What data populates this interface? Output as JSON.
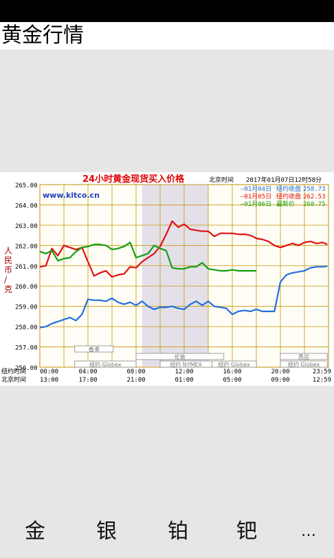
{
  "page": {
    "title": "黄金行情"
  },
  "tabs": [
    {
      "label": "金"
    },
    {
      "label": "银"
    },
    {
      "label": "铂"
    },
    {
      "label": "钯"
    },
    {
      "label": "…"
    }
  ],
  "chart_data": {
    "type": "line",
    "title": "24小时黄金现货买入价格",
    "source": "www.kitco.cn",
    "time_label": "北京时间",
    "timestamp": "2017年01月07日12时58分",
    "ylabel": "人民币/克",
    "ylim": [
      256,
      265
    ],
    "yticks": [
      "265.00",
      "264.00",
      "263.00",
      "262.00",
      "261.00",
      "260.00",
      "259.00",
      "258.00",
      "257.00",
      "256.00"
    ],
    "x_row1_label": "纽约时间",
    "x_row2_label": "北京时间",
    "x_row1_ticks": [
      "00:00",
      "04:00",
      "08:00",
      "12:00",
      "16:00",
      "20:00",
      "23:59"
    ],
    "x_row2_ticks": [
      "13:00",
      "17:00",
      "21:00",
      "01:00",
      "05:00",
      "09:00",
      "12:59"
    ],
    "legend": [
      {
        "date": "—01月04日",
        "kind": "纽约收盘",
        "value": "258.73",
        "color": "#1f6fe0"
      },
      {
        "date": "—01月05日",
        "kind": "纽约收盘",
        "value": "262.53",
        "color": "#e01010"
      },
      {
        "date": "—01月06日",
        "kind": "最新价",
        "value": "260.75",
        "color": "#10a010"
      }
    ],
    "markets": [
      {
        "name": "香港",
        "start": 2.9,
        "end": 6.1
      },
      {
        "name": "伦敦",
        "start": 8.0,
        "end": 15.3
      },
      {
        "name": "纽约 Globex",
        "start": 2.9,
        "end": 8.0
      },
      {
        "name": "纽约 NYMEX",
        "start": 10.0,
        "end": 14.3
      },
      {
        "name": "纽约 Globex",
        "start": 14.3,
        "end": 18.0
      },
      {
        "name": "悉尼",
        "start": 20.0,
        "end": 23.9
      },
      {
        "name": "纽约 Globex",
        "start": 20.0,
        "end": 23.9
      }
    ],
    "shaded_range": [
      8.5,
      14.0
    ],
    "grid": true,
    "series": [
      {
        "name": "01月04日",
        "color": "#1f6fe0",
        "x": [
          0,
          0.5,
          1,
          1.5,
          2,
          2.5,
          3,
          3.5,
          4,
          4.5,
          5,
          5.5,
          6,
          6.5,
          7,
          7.5,
          8,
          8.5,
          9,
          9.5,
          10,
          10.5,
          11,
          11.5,
          12,
          12.5,
          13,
          13.5,
          14,
          14.5,
          15,
          15.5,
          16,
          16.5,
          17,
          17.5,
          18,
          18.5,
          19,
          19.5,
          20,
          20.5,
          21,
          21.5,
          22,
          22.5,
          23,
          23.5,
          23.9
        ],
        "values": [
          257.95,
          258.0,
          258.15,
          258.25,
          258.35,
          258.45,
          258.3,
          258.6,
          259.35,
          259.3,
          259.3,
          259.25,
          259.4,
          259.2,
          259.1,
          259.2,
          259.05,
          259.25,
          259.0,
          258.85,
          258.95,
          258.95,
          259.0,
          258.9,
          258.85,
          259.1,
          259.25,
          259.05,
          259.25,
          259.0,
          258.95,
          258.9,
          258.6,
          258.75,
          258.8,
          258.75,
          258.85,
          258.75,
          258.75,
          258.75,
          260.2,
          260.55,
          260.65,
          260.7,
          260.75,
          260.9,
          260.95,
          260.95,
          260.98
        ]
      },
      {
        "name": "01月05日",
        "color": "#e01010",
        "x": [
          0,
          0.5,
          1,
          1.5,
          2,
          2.5,
          3,
          3.5,
          4,
          4.5,
          5,
          5.5,
          6,
          6.5,
          7,
          7.5,
          8,
          8.5,
          9,
          9.5,
          10,
          10.5,
          11,
          11.5,
          12,
          12.5,
          13,
          13.5,
          14,
          14.5,
          15,
          15.5,
          16,
          16.5,
          17,
          17.5,
          18,
          18.5,
          19,
          19.5,
          20,
          20.5,
          21,
          21.5,
          22,
          22.5,
          23,
          23.5,
          23.9
        ],
        "values": [
          260.95,
          261.0,
          261.85,
          261.5,
          262.0,
          261.9,
          261.8,
          261.9,
          261.2,
          260.5,
          260.65,
          260.75,
          260.45,
          260.55,
          260.6,
          260.95,
          260.9,
          261.2,
          261.4,
          261.6,
          261.95,
          262.55,
          263.2,
          262.9,
          263.05,
          262.8,
          262.75,
          262.7,
          262.7,
          262.45,
          262.6,
          262.6,
          262.6,
          262.55,
          262.55,
          262.5,
          262.35,
          262.3,
          262.2,
          262.0,
          261.9,
          262.0,
          262.1,
          262.0,
          262.15,
          262.2,
          262.1,
          262.15,
          262.05
        ]
      },
      {
        "name": "01月06日",
        "color": "#10a010",
        "x": [
          0,
          0.5,
          1,
          1.5,
          2,
          2.5,
          3,
          3.5,
          4,
          4.5,
          5,
          5.5,
          6,
          6.5,
          7,
          7.5,
          8,
          8.5,
          9,
          9.5,
          10,
          10.5,
          11,
          11.5,
          12,
          12.5,
          13,
          13.5,
          14,
          14.5,
          15,
          15.5,
          16,
          16.5,
          17,
          17.5,
          18
        ],
        "values": [
          261.7,
          261.6,
          261.75,
          261.25,
          261.35,
          261.4,
          261.7,
          261.9,
          261.95,
          262.05,
          262.05,
          262.0,
          261.8,
          261.85,
          261.95,
          262.15,
          261.4,
          261.5,
          261.6,
          262.0,
          261.85,
          261.75,
          260.9,
          260.85,
          260.85,
          260.95,
          260.95,
          261.15,
          260.85,
          260.8,
          260.75,
          260.75,
          260.8,
          260.75,
          260.75,
          260.75,
          260.75
        ]
      }
    ]
  }
}
